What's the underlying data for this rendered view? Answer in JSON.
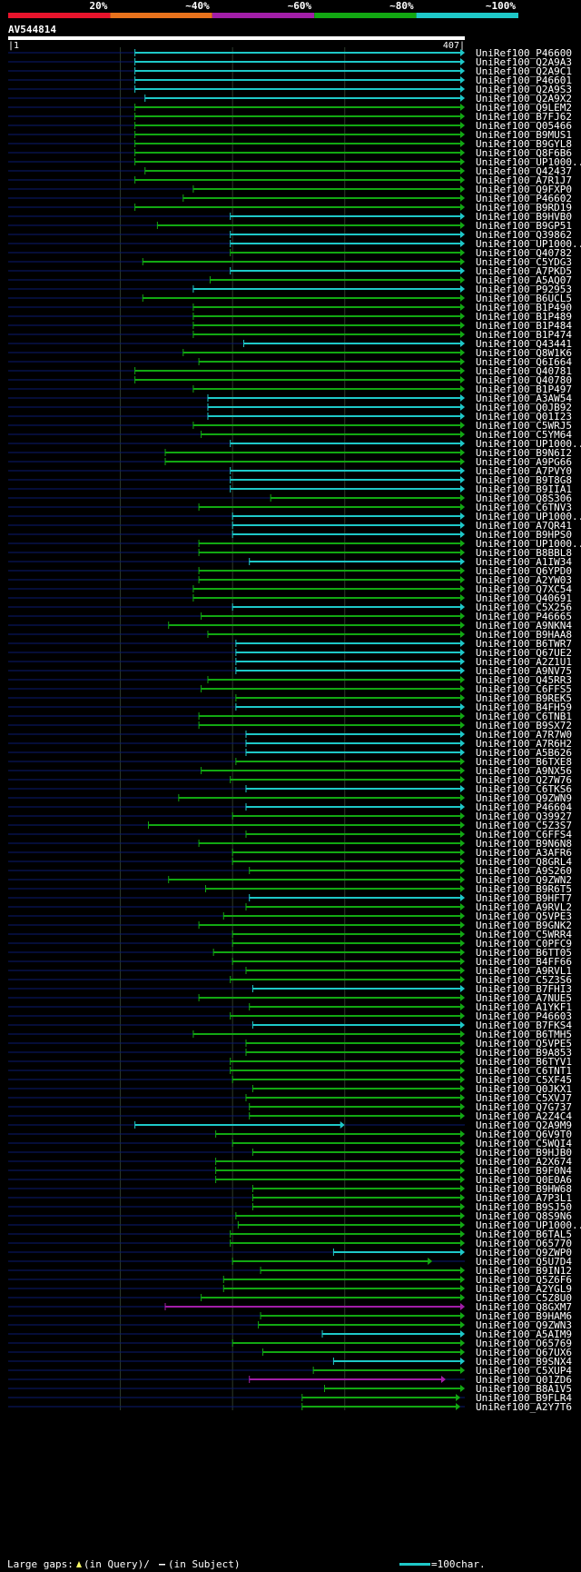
{
  "chart_data": {
    "type": "alignment-overview",
    "query_name": "AV544814",
    "query_start": "1",
    "query_end": "407",
    "identity_legend": [
      {
        "label": "20%",
        "color": "#e8142c"
      },
      {
        "label": "~40%",
        "color": "#e8721c"
      },
      {
        "label": "~60%",
        "color": "#a21ea8"
      },
      {
        "label": "~80%",
        "color": "#12a812"
      },
      {
        "label": "~100%",
        "color": "#1ec8c8"
      }
    ],
    "footer": {
      "gaps_text": "Large gaps:",
      "query_gap_text": "(in Query)/",
      "subject_gap_text": "(in Subject)",
      "scale_text": "=100char."
    },
    "colors": {
      "cyan": "#1ec8c8",
      "green": "#12a812",
      "magenta": "#a21ea8",
      "navy": "#0a1a70"
    },
    "hits": [
      {
        "name": "UniRef100_P46600",
        "start": 113,
        "end": 407,
        "color": "cyan"
      },
      {
        "name": "UniRef100_Q2A9A3",
        "start": 113,
        "end": 407,
        "color": "cyan"
      },
      {
        "name": "UniRef100_Q2A9C1",
        "start": 113,
        "end": 407,
        "color": "cyan"
      },
      {
        "name": "UniRef100_P46601",
        "start": 113,
        "end": 407,
        "color": "cyan"
      },
      {
        "name": "UniRef100_Q2A9S3",
        "start": 113,
        "end": 407,
        "color": "cyan"
      },
      {
        "name": "UniRef100_Q2A9X2",
        "start": 122,
        "end": 407,
        "color": "cyan"
      },
      {
        "name": "UniRef100_Q9LEM2",
        "start": 113,
        "end": 407,
        "color": "green"
      },
      {
        "name": "UniRef100_B7FJ62",
        "start": 113,
        "end": 407,
        "color": "green"
      },
      {
        "name": "UniRef100_Q05466",
        "start": 113,
        "end": 407,
        "color": "green"
      },
      {
        "name": "UniRef100_B9MUS1",
        "start": 113,
        "end": 407,
        "color": "green"
      },
      {
        "name": "UniRef100_B9GYL8",
        "start": 113,
        "end": 407,
        "color": "green"
      },
      {
        "name": "UniRef100_Q8F6B6",
        "start": 113,
        "end": 407,
        "color": "green"
      },
      {
        "name": "UniRef100_UP1000..",
        "start": 113,
        "end": 407,
        "color": "green"
      },
      {
        "name": "UniRef100_Q42437",
        "start": 122,
        "end": 407,
        "color": "green"
      },
      {
        "name": "UniRef100_A7R1J7",
        "start": 113,
        "end": 407,
        "color": "green"
      },
      {
        "name": "UniRef100_Q9FXP0",
        "start": 165,
        "end": 407,
        "color": "green"
      },
      {
        "name": "UniRef100_P46602",
        "start": 156,
        "end": 407,
        "color": "green"
      },
      {
        "name": "UniRef100_B9RD19",
        "start": 113,
        "end": 407,
        "color": "green"
      },
      {
        "name": "UniRef100_B9HVB0",
        "start": 198,
        "end": 407,
        "color": "cyan"
      },
      {
        "name": "UniRef100_B9GP51",
        "start": 133,
        "end": 407,
        "color": "green"
      },
      {
        "name": "UniRef100_Q39862",
        "start": 198,
        "end": 407,
        "color": "cyan"
      },
      {
        "name": "UniRef100_UP1000..",
        "start": 198,
        "end": 407,
        "color": "cyan"
      },
      {
        "name": "UniRef100_Q40782",
        "start": 198,
        "end": 407,
        "color": "green"
      },
      {
        "name": "UniRef100_C5YDG3",
        "start": 120,
        "end": 407,
        "color": "green"
      },
      {
        "name": "UniRef100_A7PKD5",
        "start": 198,
        "end": 407,
        "color": "cyan"
      },
      {
        "name": "UniRef100_A5AQ07",
        "start": 180,
        "end": 407,
        "color": "green"
      },
      {
        "name": "UniRef100_P92953",
        "start": 165,
        "end": 407,
        "color": "cyan"
      },
      {
        "name": "UniRef100_B6UCL5",
        "start": 120,
        "end": 407,
        "color": "green"
      },
      {
        "name": "UniRef100_B1P490",
        "start": 165,
        "end": 407,
        "color": "green"
      },
      {
        "name": "UniRef100_B1P489",
        "start": 165,
        "end": 407,
        "color": "green"
      },
      {
        "name": "UniRef100_B1P484",
        "start": 165,
        "end": 407,
        "color": "green"
      },
      {
        "name": "UniRef100_B1P474",
        "start": 165,
        "end": 407,
        "color": "green"
      },
      {
        "name": "UniRef100_Q43441",
        "start": 210,
        "end": 407,
        "color": "cyan"
      },
      {
        "name": "UniRef100_Q8W1K6",
        "start": 156,
        "end": 407,
        "color": "green"
      },
      {
        "name": "UniRef100_Q6I664",
        "start": 170,
        "end": 407,
        "color": "green"
      },
      {
        "name": "UniRef100_Q40781",
        "start": 113,
        "end": 407,
        "color": "green"
      },
      {
        "name": "UniRef100_Q40780",
        "start": 113,
        "end": 407,
        "color": "green"
      },
      {
        "name": "UniRef100_B1P497",
        "start": 165,
        "end": 407,
        "color": "green"
      },
      {
        "name": "UniRef100_A3AW54",
        "start": 178,
        "end": 407,
        "color": "cyan"
      },
      {
        "name": "UniRef100_Q0JB92",
        "start": 178,
        "end": 407,
        "color": "cyan"
      },
      {
        "name": "UniRef100_Q01I23",
        "start": 178,
        "end": 407,
        "color": "cyan"
      },
      {
        "name": "UniRef100_C5WRJ5",
        "start": 165,
        "end": 407,
        "color": "green"
      },
      {
        "name": "UniRef100_C5YM64",
        "start": 172,
        "end": 407,
        "color": "green"
      },
      {
        "name": "UniRef100_UP1000..",
        "start": 198,
        "end": 407,
        "color": "cyan"
      },
      {
        "name": "UniRef100_B9N6I2",
        "start": 140,
        "end": 407,
        "color": "green"
      },
      {
        "name": "UniRef100_A9PG66",
        "start": 140,
        "end": 407,
        "color": "green"
      },
      {
        "name": "UniRef100_A7PVY0",
        "start": 198,
        "end": 407,
        "color": "cyan"
      },
      {
        "name": "UniRef100_B9T8G8",
        "start": 198,
        "end": 407,
        "color": "cyan"
      },
      {
        "name": "UniRef100_B9IIA1",
        "start": 198,
        "end": 407,
        "color": "cyan"
      },
      {
        "name": "UniRef100_Q8S306",
        "start": 234,
        "end": 407,
        "color": "green"
      },
      {
        "name": "UniRef100_C6TNV3",
        "start": 170,
        "end": 407,
        "color": "green"
      },
      {
        "name": "UniRef100_UP1000..",
        "start": 200,
        "end": 407,
        "color": "cyan"
      },
      {
        "name": "UniRef100_A7QR41",
        "start": 200,
        "end": 407,
        "color": "cyan"
      },
      {
        "name": "UniRef100_B9HPS0",
        "start": 200,
        "end": 407,
        "color": "cyan"
      },
      {
        "name": "UniRef100_UP1000..",
        "start": 170,
        "end": 407,
        "color": "green"
      },
      {
        "name": "UniRef100_B8BBL8",
        "start": 170,
        "end": 407,
        "color": "green"
      },
      {
        "name": "UniRef100_A1IW34",
        "start": 215,
        "end": 407,
        "color": "cyan"
      },
      {
        "name": "UniRef100_Q6YPD0",
        "start": 170,
        "end": 407,
        "color": "green"
      },
      {
        "name": "UniRef100_A2YW03",
        "start": 170,
        "end": 407,
        "color": "green"
      },
      {
        "name": "UniRef100_Q7XC54",
        "start": 165,
        "end": 407,
        "color": "green"
      },
      {
        "name": "UniRef100_Q40691",
        "start": 165,
        "end": 407,
        "color": "green"
      },
      {
        "name": "UniRef100_C5X256",
        "start": 200,
        "end": 407,
        "color": "cyan"
      },
      {
        "name": "UniRef100_P46665",
        "start": 172,
        "end": 407,
        "color": "green"
      },
      {
        "name": "UniRef100_A9NKN4",
        "start": 143,
        "end": 407,
        "color": "green"
      },
      {
        "name": "UniRef100_B9HAA8",
        "start": 178,
        "end": 407,
        "color": "green"
      },
      {
        "name": "UniRef100_B6TWR7",
        "start": 203,
        "end": 407,
        "color": "cyan"
      },
      {
        "name": "UniRef100_Q67UE2",
        "start": 203,
        "end": 407,
        "color": "cyan"
      },
      {
        "name": "UniRef100_A2Z1U1",
        "start": 203,
        "end": 407,
        "color": "cyan"
      },
      {
        "name": "UniRef100_A9NV75",
        "start": 203,
        "end": 407,
        "color": "cyan"
      },
      {
        "name": "UniRef100_Q45RR3",
        "start": 178,
        "end": 407,
        "color": "green"
      },
      {
        "name": "UniRef100_C6FFS5",
        "start": 172,
        "end": 407,
        "color": "green"
      },
      {
        "name": "UniRef100_B9REK5",
        "start": 203,
        "end": 407,
        "color": "green"
      },
      {
        "name": "UniRef100_B4FH59",
        "start": 203,
        "end": 407,
        "color": "cyan"
      },
      {
        "name": "UniRef100_C6TNB1",
        "start": 170,
        "end": 407,
        "color": "green"
      },
      {
        "name": "UniRef100_B9SX72",
        "start": 170,
        "end": 407,
        "color": "green"
      },
      {
        "name": "UniRef100_A7R7W0",
        "start": 212,
        "end": 407,
        "color": "cyan"
      },
      {
        "name": "UniRef100_A7R6H2",
        "start": 212,
        "end": 407,
        "color": "cyan"
      },
      {
        "name": "UniRef100_A5B626",
        "start": 212,
        "end": 407,
        "color": "cyan"
      },
      {
        "name": "UniRef100_B6TXE8",
        "start": 203,
        "end": 407,
        "color": "green"
      },
      {
        "name": "UniRef100_A9NX56",
        "start": 172,
        "end": 407,
        "color": "green"
      },
      {
        "name": "UniRef100_Q27W76",
        "start": 198,
        "end": 407,
        "color": "green"
      },
      {
        "name": "UniRef100_C6TKS6",
        "start": 212,
        "end": 407,
        "color": "cyan"
      },
      {
        "name": "UniRef100_Q9ZWN9",
        "start": 152,
        "end": 407,
        "color": "green"
      },
      {
        "name": "UniRef100_P46604",
        "start": 212,
        "end": 407,
        "color": "cyan"
      },
      {
        "name": "UniRef100_Q39927",
        "start": 200,
        "end": 407,
        "color": "green"
      },
      {
        "name": "UniRef100_C5Z3S7",
        "start": 125,
        "end": 407,
        "color": "green"
      },
      {
        "name": "UniRef100_C6FFS4",
        "start": 212,
        "end": 407,
        "color": "green"
      },
      {
        "name": "UniRef100_B9N6N8",
        "start": 170,
        "end": 407,
        "color": "green"
      },
      {
        "name": "UniRef100_A3AFR6",
        "start": 200,
        "end": 407,
        "color": "green"
      },
      {
        "name": "UniRef100_Q8GRL4",
        "start": 200,
        "end": 407,
        "color": "green"
      },
      {
        "name": "UniRef100_A9S260",
        "start": 215,
        "end": 407,
        "color": "green"
      },
      {
        "name": "UniRef100_Q9ZWN2",
        "start": 143,
        "end": 407,
        "color": "green"
      },
      {
        "name": "UniRef100_B9R6T5",
        "start": 176,
        "end": 407,
        "color": "green"
      },
      {
        "name": "UniRef100_B9HFT7",
        "start": 215,
        "end": 407,
        "color": "cyan"
      },
      {
        "name": "UniRef100_A9RVL2",
        "start": 212,
        "end": 407,
        "color": "green"
      },
      {
        "name": "UniRef100_Q5VPE3",
        "start": 192,
        "end": 407,
        "color": "green"
      },
      {
        "name": "UniRef100_B9GNK2",
        "start": 170,
        "end": 407,
        "color": "green"
      },
      {
        "name": "UniRef100_C5WRR4",
        "start": 200,
        "end": 407,
        "color": "green"
      },
      {
        "name": "UniRef100_C0PFC9",
        "start": 200,
        "end": 407,
        "color": "green"
      },
      {
        "name": "UniRef100_B6TT05",
        "start": 183,
        "end": 407,
        "color": "green"
      },
      {
        "name": "UniRef100_B4FF66",
        "start": 200,
        "end": 407,
        "color": "green"
      },
      {
        "name": "UniRef100_A9RVL1",
        "start": 212,
        "end": 407,
        "color": "green"
      },
      {
        "name": "UniRef100_C5Z3S6",
        "start": 198,
        "end": 407,
        "color": "green"
      },
      {
        "name": "UniRef100_B7FHI3",
        "start": 218,
        "end": 407,
        "color": "cyan"
      },
      {
        "name": "UniRef100_A7NUE5",
        "start": 170,
        "end": 407,
        "color": "green"
      },
      {
        "name": "UniRef100_A1YKF1",
        "start": 215,
        "end": 407,
        "color": "green"
      },
      {
        "name": "UniRef100_P46603",
        "start": 198,
        "end": 407,
        "color": "green"
      },
      {
        "name": "UniRef100_B7FKS4",
        "start": 218,
        "end": 407,
        "color": "cyan"
      },
      {
        "name": "UniRef100_B6TMH5",
        "start": 165,
        "end": 407,
        "color": "green"
      },
      {
        "name": "UniRef100_Q5VPE5",
        "start": 212,
        "end": 407,
        "color": "green"
      },
      {
        "name": "UniRef100_B9A853",
        "start": 212,
        "end": 407,
        "color": "green"
      },
      {
        "name": "UniRef100_B6TYV1",
        "start": 198,
        "end": 407,
        "color": "green"
      },
      {
        "name": "UniRef100_C6TNT1",
        "start": 198,
        "end": 407,
        "color": "green"
      },
      {
        "name": "UniRef100_C5XF45",
        "start": 200,
        "end": 407,
        "color": "green"
      },
      {
        "name": "UniRef100_Q0JKX1",
        "start": 218,
        "end": 407,
        "color": "green"
      },
      {
        "name": "UniRef100_C5XVJ7",
        "start": 212,
        "end": 407,
        "color": "green"
      },
      {
        "name": "UniRef100_Q7G737",
        "start": 215,
        "end": 407,
        "color": "green"
      },
      {
        "name": "UniRef100_A2Z4C4",
        "start": 215,
        "end": 407,
        "color": "green"
      },
      {
        "name": "UniRef100_Q2A9M9",
        "start": 113,
        "end": 300,
        "color": "cyan"
      },
      {
        "name": "UniRef100_Q6V9T0",
        "start": 185,
        "end": 407,
        "color": "green"
      },
      {
        "name": "UniRef100_C5WQI4",
        "start": 200,
        "end": 407,
        "color": "green"
      },
      {
        "name": "UniRef100_B9HJB0",
        "start": 218,
        "end": 407,
        "color": "green"
      },
      {
        "name": "UniRef100_A2X674",
        "start": 185,
        "end": 407,
        "color": "green"
      },
      {
        "name": "UniRef100_B9F0N4",
        "start": 185,
        "end": 407,
        "color": "green"
      },
      {
        "name": "UniRef100_Q0E0A6",
        "start": 185,
        "end": 407,
        "color": "green"
      },
      {
        "name": "UniRef100_B9HW68",
        "start": 218,
        "end": 407,
        "color": "green"
      },
      {
        "name": "UniRef100_A7P3L1",
        "start": 218,
        "end": 407,
        "color": "green"
      },
      {
        "name": "UniRef100_B9SJ50",
        "start": 218,
        "end": 407,
        "color": "green"
      },
      {
        "name": "UniRef100_Q8S9N6",
        "start": 203,
        "end": 407,
        "color": "green"
      },
      {
        "name": "UniRef100_UP1000..",
        "start": 205,
        "end": 407,
        "color": "green"
      },
      {
        "name": "UniRef100_B6TAL5",
        "start": 198,
        "end": 407,
        "color": "green"
      },
      {
        "name": "UniRef100_O65770",
        "start": 198,
        "end": 407,
        "color": "green"
      },
      {
        "name": "UniRef100_Q9ZWP0",
        "start": 290,
        "end": 407,
        "color": "cyan"
      },
      {
        "name": "UniRef100_Q5U7D4",
        "start": 200,
        "end": 378,
        "color": "green"
      },
      {
        "name": "UniRef100_B9IN12",
        "start": 225,
        "end": 407,
        "color": "green"
      },
      {
        "name": "UniRef100_Q5Z6F6",
        "start": 192,
        "end": 407,
        "color": "green"
      },
      {
        "name": "UniRef100_A2YGL9",
        "start": 192,
        "end": 407,
        "color": "green"
      },
      {
        "name": "UniRef100_C5Z8U0",
        "start": 172,
        "end": 407,
        "color": "green"
      },
      {
        "name": "UniRef100_Q8GXM7",
        "start": 140,
        "end": 407,
        "color": "magenta"
      },
      {
        "name": "UniRef100_B9HAM6",
        "start": 225,
        "end": 407,
        "color": "green"
      },
      {
        "name": "UniRef100_Q9ZWN3",
        "start": 223,
        "end": 407,
        "color": "green"
      },
      {
        "name": "UniRef100_A5AIM9",
        "start": 280,
        "end": 407,
        "color": "cyan"
      },
      {
        "name": "UniRef100_O65769",
        "start": 200,
        "end": 407,
        "color": "green"
      },
      {
        "name": "UniRef100_Q67UX6",
        "start": 227,
        "end": 407,
        "color": "green"
      },
      {
        "name": "UniRef100_B9SNX4",
        "start": 290,
        "end": 407,
        "color": "cyan"
      },
      {
        "name": "UniRef100_C5XUP4",
        "start": 272,
        "end": 407,
        "color": "green"
      },
      {
        "name": "UniRef100_Q01ZD6",
        "start": 215,
        "end": 390,
        "color": "magenta"
      },
      {
        "name": "UniRef100_B8A1V5",
        "start": 282,
        "end": 407,
        "color": "green"
      },
      {
        "name": "UniRef100_B9FLR4",
        "start": 262,
        "end": 403,
        "color": "green"
      },
      {
        "name": "UniRef100_A2Y7T6",
        "start": 262,
        "end": 403,
        "color": "green"
      }
    ]
  }
}
